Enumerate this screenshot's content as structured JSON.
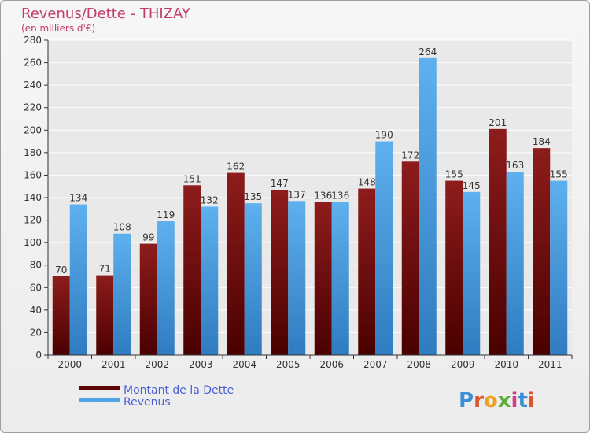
{
  "chart_data": {
    "type": "bar",
    "title": "Revenus/Dette - THIZAY",
    "subtitle": "(en milliers d'€)",
    "categories": [
      "2000",
      "2001",
      "2002",
      "2003",
      "2004",
      "2005",
      "2006",
      "2007",
      "2008",
      "2009",
      "2010",
      "2011"
    ],
    "series": [
      {
        "name": "Montant de la Dette",
        "color": "#7a0a0a",
        "values": [
          70,
          71,
          99,
          151,
          162,
          147,
          136,
          148,
          172,
          155,
          201,
          184
        ]
      },
      {
        "name": "Revenus",
        "color": "#4fa3e2",
        "values": [
          134,
          108,
          119,
          132,
          135,
          137,
          136,
          190,
          264,
          145,
          163,
          155
        ]
      }
    ],
    "ylim": [
      0,
      280
    ],
    "yticks": [
      0,
      20,
      40,
      60,
      80,
      100,
      120,
      140,
      160,
      180,
      200,
      220,
      240,
      260,
      280
    ],
    "grid": true,
    "legend": "bottom-left",
    "xlabel": "",
    "ylabel": ""
  },
  "brand": {
    "letters": [
      "P",
      "r",
      "o",
      "x",
      "i",
      "t",
      "i"
    ],
    "colors": [
      "#3b8fd6",
      "#e0522d",
      "#f0a020",
      "#5cae3c",
      "#d83a8a",
      "#3b8fd6",
      "#e0522d"
    ]
  },
  "colors": {
    "title": "#c23b6a",
    "axis": "#333333",
    "grid": "#ffffff"
  }
}
